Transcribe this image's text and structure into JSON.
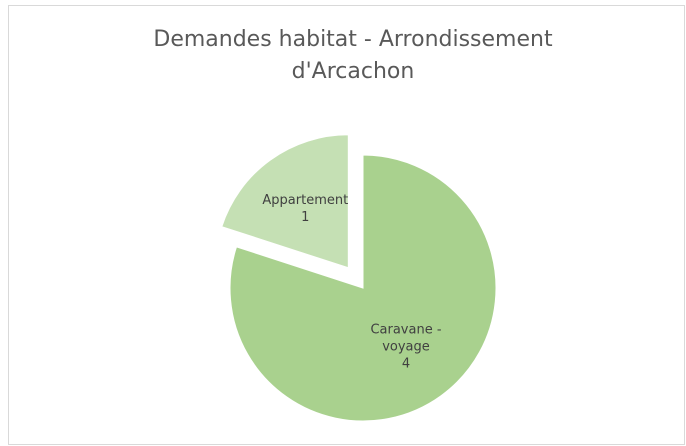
{
  "chart_data": {
    "type": "pie",
    "title": "Demandes habitat - Arrondissement d'Arcachon",
    "categories": [
      "Caravane - voyage",
      "Appartement"
    ],
    "values": [
      4,
      1
    ],
    "colors": [
      "#a9d18e",
      "#c5e0b4"
    ],
    "explode": [
      false,
      true
    ]
  }
}
